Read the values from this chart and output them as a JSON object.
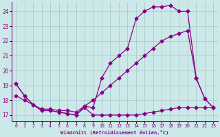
{
  "xlabel": "Windchill (Refroidissement éolien,°C)",
  "bg_color": "#cde8e8",
  "grid_color": "#aacccc",
  "line_color": "#880088",
  "xlim": [
    -0.5,
    23.5
  ],
  "ylim": [
    16.6,
    24.6
  ],
  "yticks": [
    17,
    18,
    19,
    20,
    21,
    22,
    23,
    24
  ],
  "xticks": [
    0,
    1,
    2,
    3,
    4,
    5,
    6,
    7,
    8,
    9,
    10,
    11,
    12,
    13,
    14,
    15,
    16,
    17,
    18,
    19,
    20,
    21,
    22,
    23
  ],
  "line1_x": [
    0,
    1,
    2,
    3,
    4,
    5,
    6,
    7,
    8,
    9,
    10,
    11,
    12,
    13,
    14,
    15,
    16,
    17,
    18,
    19,
    20,
    21,
    22,
    23
  ],
  "line1_y": [
    19.1,
    18.3,
    17.7,
    17.3,
    17.3,
    17.2,
    17.1,
    17.0,
    17.5,
    17.0,
    17.0,
    17.0,
    17.0,
    17.0,
    17.0,
    17.1,
    17.2,
    17.3,
    17.4,
    17.5,
    17.5,
    17.5,
    17.5,
    17.5
  ],
  "line2_x": [
    0,
    1,
    2,
    3,
    4,
    5,
    6,
    7,
    8,
    9,
    10,
    11,
    12,
    13,
    14,
    15,
    16,
    17,
    18,
    19,
    20,
    21,
    22,
    23
  ],
  "line2_y": [
    18.3,
    18.0,
    17.7,
    17.4,
    17.4,
    17.3,
    17.3,
    17.2,
    17.6,
    18.0,
    18.5,
    19.0,
    19.5,
    20.0,
    20.5,
    21.0,
    21.5,
    22.0,
    22.3,
    22.5,
    22.7,
    19.5,
    18.1,
    17.5
  ],
  "line3_x": [
    0,
    1,
    2,
    3,
    4,
    5,
    6,
    7,
    8,
    9,
    10,
    11,
    12,
    13,
    14,
    15,
    16,
    17,
    18,
    19,
    20,
    21,
    22,
    23
  ],
  "line3_y": [
    19.1,
    18.3,
    17.7,
    17.3,
    17.3,
    17.2,
    17.1,
    17.0,
    17.6,
    17.5,
    19.5,
    20.5,
    21.0,
    21.5,
    23.5,
    24.0,
    24.3,
    24.3,
    24.4,
    24.0,
    24.0,
    19.5,
    18.1,
    17.5
  ],
  "marker": "D",
  "markersize": 2.5,
  "linewidth": 0.9
}
